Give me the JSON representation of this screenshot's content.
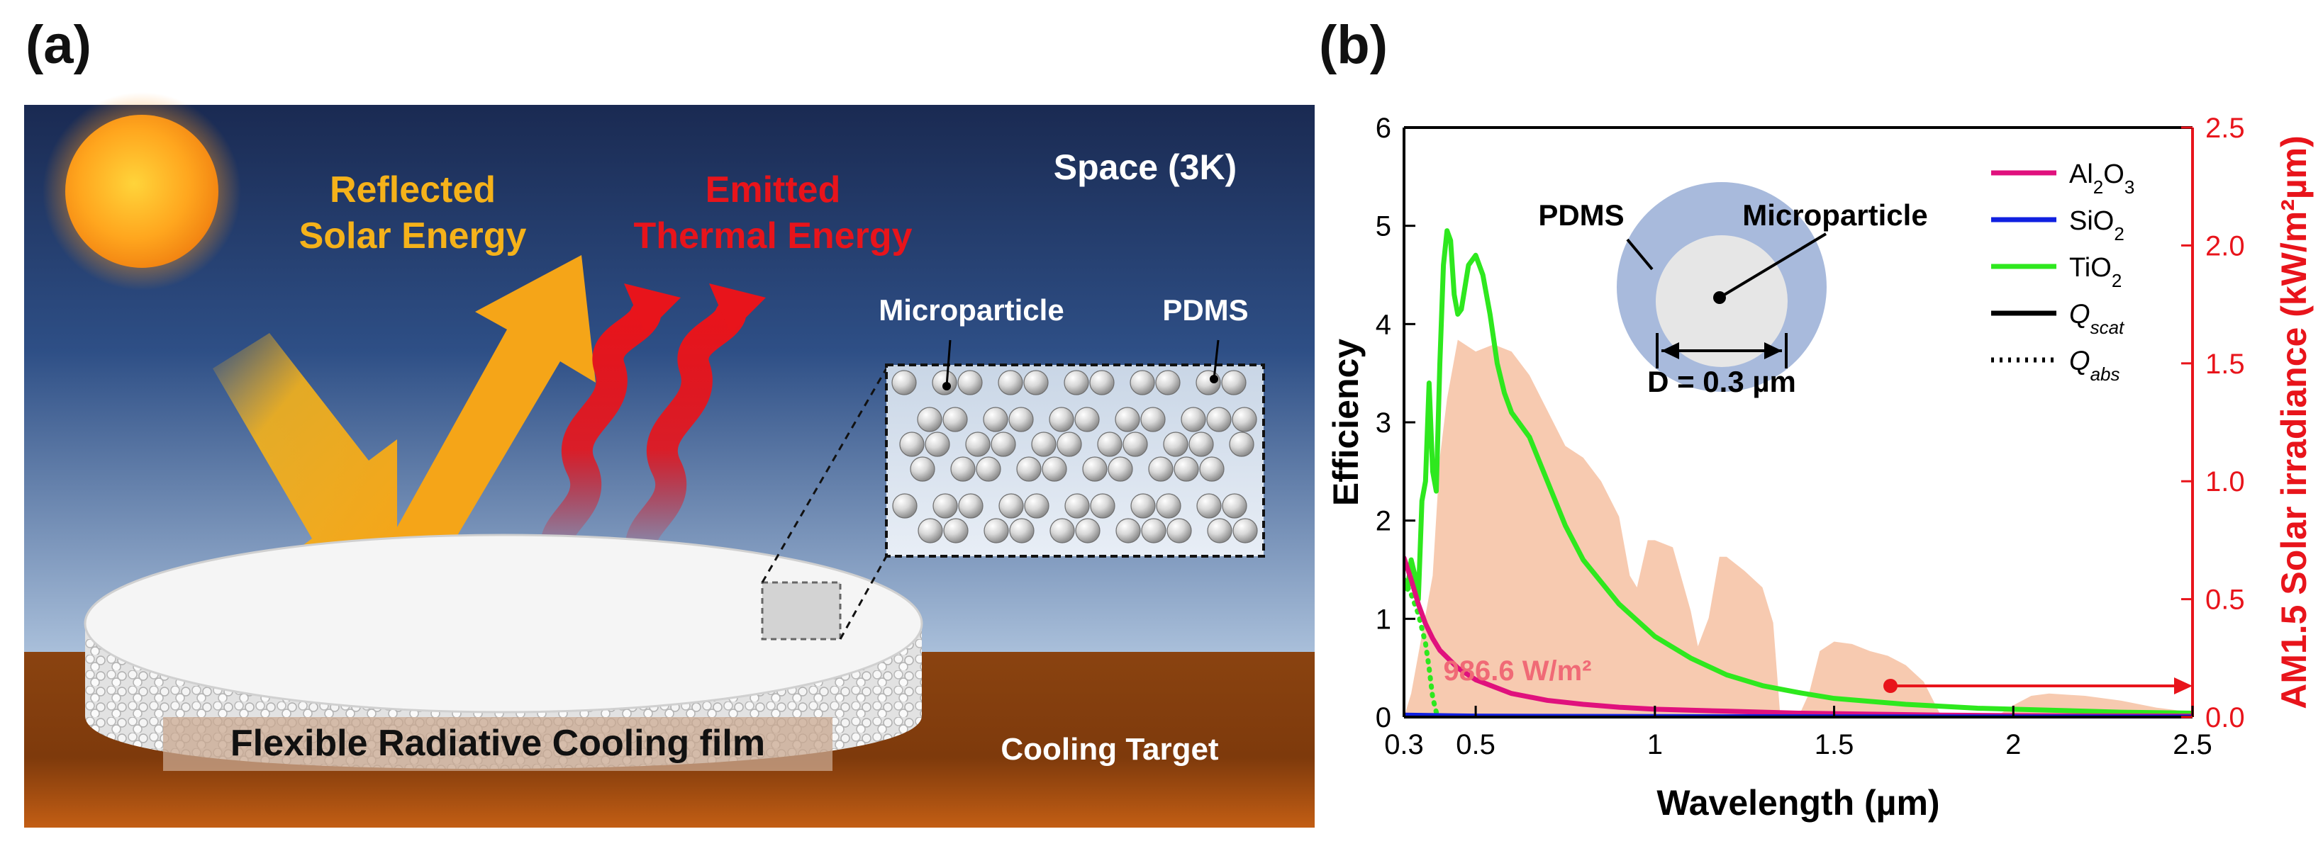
{
  "panel_a": {
    "label": "(a)",
    "space_label": "Space (3K)",
    "reflected_line1": "Reflected",
    "reflected_line2": "Solar Energy",
    "emitted_line1": "Emitted",
    "emitted_line2": "Thermal Energy",
    "microparticle_label": "Microparticle",
    "pdms_label": "PDMS",
    "film_label": "Flexible Radiative Cooling film",
    "target_label": "Cooling Target",
    "colors": {
      "reflected": "#F5B21A",
      "emitted": "#E8141B",
      "sky_top": "#1B2C55",
      "sky_bottom": "#9DB4D2",
      "ground": "#8C4310"
    }
  },
  "panel_b": {
    "label": "(b)",
    "inset": {
      "pdms": "PDMS",
      "microparticle": "Microparticle",
      "diameter": "D = 0.3 µm"
    },
    "annotation": "986.6 W/m²",
    "chart_data": {
      "type": "line",
      "xlabel": "Wavelength (µm)",
      "ylabel_left": "Efficiency",
      "ylabel_right": "AM1.5 Solar irradiance (kW/m²µm)",
      "xlim": [
        0.3,
        2.5
      ],
      "ylim_left": [
        0,
        6
      ],
      "ylim_right": [
        0,
        2.5
      ],
      "xticks": [
        "0.3",
        "0.5",
        "1",
        "1.5",
        "2",
        "2.5"
      ],
      "yticks_left": [
        "0",
        "1",
        "2",
        "3",
        "4",
        "5",
        "6"
      ],
      "yticks_right": [
        "0.0",
        "0.5",
        "1.0",
        "1.5",
        "2.0",
        "2.5"
      ],
      "legend": [
        {
          "name": "Al2O3",
          "main": "Al",
          "sub1": "2",
          "mid": "O",
          "sub2": "3",
          "color": "#E0117D",
          "style": "solid"
        },
        {
          "name": "SiO2",
          "main": "SiO",
          "sub1": "2",
          "mid": "",
          "sub2": "",
          "color": "#1020E0",
          "style": "solid"
        },
        {
          "name": "TiO2",
          "main": "TiO",
          "sub1": "2",
          "mid": "",
          "sub2": "",
          "color": "#2EE81E",
          "style": "solid"
        },
        {
          "name": "Qscat",
          "main": "Q",
          "sub1": "scat",
          "mid": "",
          "sub2": "",
          "color": "#000000",
          "style": "solid"
        },
        {
          "name": "Qabs",
          "main": "Q",
          "sub1": "abs",
          "mid": "",
          "sub2": "",
          "color": "#000000",
          "style": "dotted"
        }
      ],
      "series": [
        {
          "name": "TiO2 Qscat",
          "color": "#2EE81E",
          "style": "solid",
          "x": [
            0.3,
            0.31,
            0.32,
            0.33,
            0.34,
            0.35,
            0.36,
            0.37,
            0.38,
            0.39,
            0.4,
            0.41,
            0.42,
            0.43,
            0.44,
            0.45,
            0.46,
            0.48,
            0.5,
            0.52,
            0.54,
            0.56,
            0.58,
            0.6,
            0.65,
            0.7,
            0.75,
            0.8,
            0.9,
            1.0,
            1.1,
            1.2,
            1.3,
            1.4,
            1.5,
            1.7,
            1.9,
            2.1,
            2.3,
            2.5
          ],
          "y": [
            1.35,
            1.3,
            1.6,
            1.45,
            1.2,
            2.2,
            2.4,
            3.4,
            2.5,
            2.3,
            3.6,
            4.6,
            4.95,
            4.85,
            4.3,
            4.1,
            4.15,
            4.6,
            4.7,
            4.5,
            4.1,
            3.6,
            3.3,
            3.1,
            2.85,
            2.4,
            1.95,
            1.6,
            1.15,
            0.82,
            0.6,
            0.43,
            0.32,
            0.25,
            0.19,
            0.13,
            0.09,
            0.07,
            0.05,
            0.04
          ]
        },
        {
          "name": "TiO2 Qabs",
          "color": "#2EE81E",
          "style": "dotted",
          "x": [
            0.3,
            0.32,
            0.34,
            0.36,
            0.37,
            0.38,
            0.39,
            0.4,
            0.42,
            0.5,
            1.0,
            2.5
          ],
          "y": [
            1.4,
            1.25,
            1.05,
            0.75,
            0.5,
            0.2,
            0.05,
            0.01,
            0.0,
            0.0,
            0.0,
            0.0
          ]
        },
        {
          "name": "Al2O3 Qscat",
          "color": "#E0117D",
          "style": "solid",
          "x": [
            0.3,
            0.32,
            0.34,
            0.36,
            0.38,
            0.4,
            0.45,
            0.5,
            0.6,
            0.7,
            0.8,
            0.9,
            1.0,
            1.2,
            1.4,
            1.6,
            1.8,
            2.0,
            2.2,
            2.5
          ],
          "y": [
            1.62,
            1.4,
            1.15,
            0.95,
            0.8,
            0.68,
            0.5,
            0.38,
            0.24,
            0.17,
            0.13,
            0.1,
            0.08,
            0.06,
            0.04,
            0.03,
            0.02,
            0.015,
            0.012,
            0.01
          ]
        },
        {
          "name": "SiO2 Qscat",
          "color": "#1020E0",
          "style": "solid",
          "x": [
            0.3,
            0.5,
            1.0,
            1.5,
            2.0,
            2.5
          ],
          "y": [
            0.02,
            0.01,
            0.005,
            0.003,
            0.002,
            0.001
          ]
        }
      ],
      "irradiance_bands": [
        {
          "x": [
            0.3,
            0.32,
            0.35,
            0.38,
            0.4,
            0.42,
            0.45,
            0.5,
            0.55,
            0.6,
            0.65,
            0.7,
            0.75,
            0.8,
            0.85,
            0.9,
            0.93,
            0.95,
            0.98,
            1.0,
            1.05,
            1.1,
            1.12,
            1.15,
            1.18,
            1.2,
            1.25,
            1.3,
            1.33,
            1.35
          ],
          "y": [
            0.0,
            0.1,
            0.35,
            0.6,
            1.1,
            1.35,
            1.6,
            1.55,
            1.58,
            1.55,
            1.45,
            1.3,
            1.15,
            1.1,
            1.0,
            0.85,
            0.6,
            0.55,
            0.75,
            0.75,
            0.72,
            0.45,
            0.3,
            0.42,
            0.68,
            0.68,
            0.62,
            0.55,
            0.4,
            0.0
          ]
        },
        {
          "x": [
            1.4,
            1.43,
            1.46,
            1.5,
            1.55,
            1.6,
            1.65,
            1.7,
            1.75,
            1.78,
            1.8
          ],
          "y": [
            0.0,
            0.1,
            0.28,
            0.32,
            0.31,
            0.28,
            0.26,
            0.22,
            0.15,
            0.06,
            0.0
          ]
        },
        {
          "x": [
            1.95,
            2.0,
            2.05,
            2.1,
            2.2,
            2.3,
            2.4,
            2.5
          ],
          "y": [
            0.0,
            0.05,
            0.09,
            0.1,
            0.09,
            0.07,
            0.04,
            0.02
          ]
        }
      ]
    }
  }
}
